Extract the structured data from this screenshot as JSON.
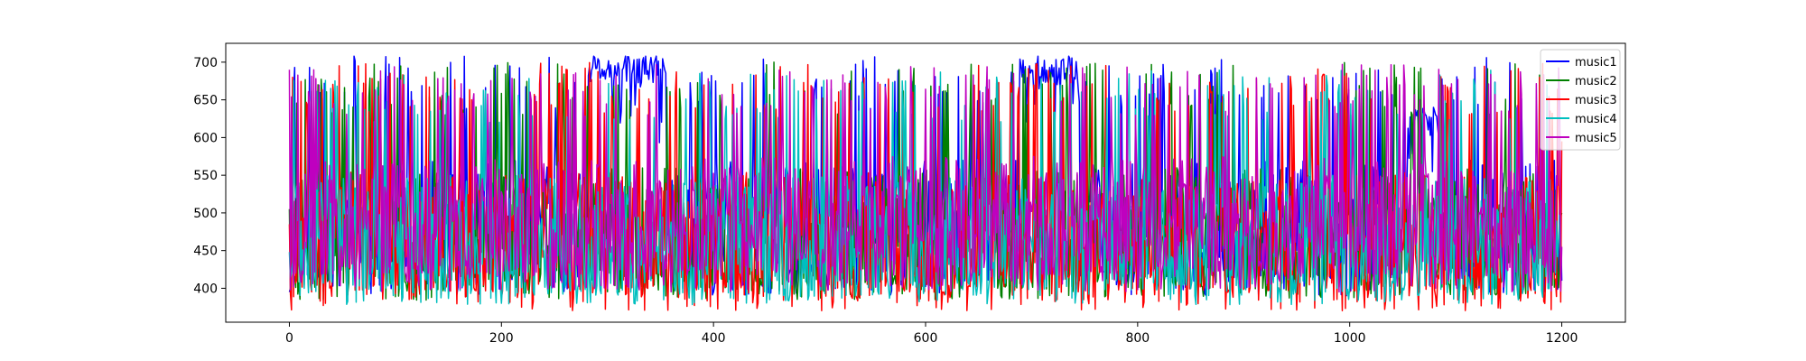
{
  "chart_data": {
    "type": "line",
    "title": "",
    "xlabel": "",
    "ylabel": "",
    "xlim": [
      -60,
      1260
    ],
    "ylim": [
      355,
      725
    ],
    "x_ticks": [
      0,
      200,
      400,
      600,
      800,
      1000,
      1200
    ],
    "y_ticks": [
      400,
      450,
      500,
      550,
      600,
      650,
      700
    ],
    "grid": false,
    "legend_position": "top-right",
    "n_points": 1201,
    "series": [
      {
        "name": "music1",
        "color": "#0000ff",
        "range": [
          390,
          708
        ],
        "mean": 490,
        "seed": 11,
        "first": 395,
        "last": 410,
        "plateaus": [
          [
            282,
            355,
            690
          ],
          [
            688,
            745,
            690
          ],
          [
            1055,
            1085,
            620
          ]
        ]
      },
      {
        "name": "music2",
        "color": "#008000",
        "range": [
          384,
          700
        ],
        "mean": 480,
        "seed": 23,
        "first": 505,
        "last": 500,
        "plateaus": []
      },
      {
        "name": "music3",
        "color": "#ff0000",
        "range": [
          370,
          700
        ],
        "mean": 475,
        "seed": 37,
        "first": 485,
        "last": 595,
        "plateaus": []
      },
      {
        "name": "music4",
        "color": "#00bfbf",
        "range": [
          378,
          690
        ],
        "mean": 470,
        "seed": 41,
        "first": 448,
        "last": 430,
        "plateaus": []
      },
      {
        "name": "music5",
        "color": "#bf00bf",
        "range": [
          395,
          698
        ],
        "mean": 495,
        "seed": 53,
        "first": 690,
        "last": 455,
        "plateaus": []
      }
    ]
  }
}
